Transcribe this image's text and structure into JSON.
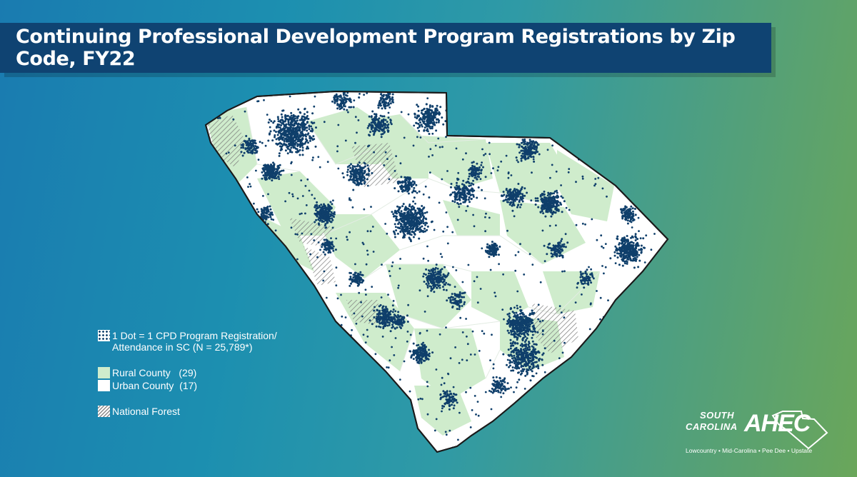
{
  "title": "Continuing Professional Development Program Registrations by Zip Code, FY22",
  "legend": {
    "dot_line1": "1 Dot = 1 CPD Program Registration/",
    "dot_line2": "Attendance in SC (N = 25,789*)",
    "rural": "Rural County   (29)",
    "urban": "Urban County  (17)",
    "forest": "National Forest"
  },
  "logo": {
    "south": "SOUTH",
    "carolina": "CAROLINA",
    "ahec": "AHEC",
    "tagline": "Lowcountry • Mid-Carolina • Pee Dee • Upstate"
  },
  "colors": {
    "rural": "#cfeccc",
    "urban": "#ffffff",
    "dot": "#0f3f6b",
    "title_bar": "#0f4372"
  }
}
